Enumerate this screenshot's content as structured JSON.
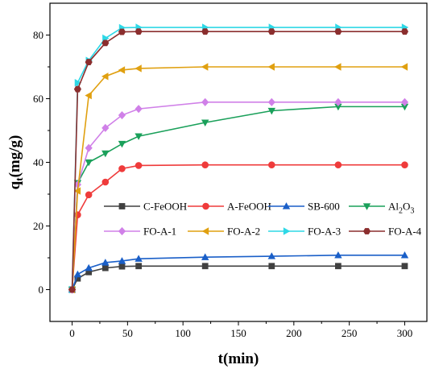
{
  "chart_data": {
    "type": "line",
    "xlabel": "t(min)",
    "ylabel": "q",
    "ylabel_sub": "t",
    "ylabel_unit": "(mg/g)",
    "xlim": [
      -20,
      320
    ],
    "ylim": [
      -10,
      90
    ],
    "xticks": [
      0,
      50,
      100,
      150,
      200,
      250,
      300
    ],
    "yticks": [
      0,
      20,
      40,
      60,
      80
    ],
    "grid": false,
    "legend_placement": "center",
    "x": [
      0,
      5,
      15,
      30,
      45,
      60,
      120,
      180,
      240,
      300
    ],
    "series": [
      {
        "name": "C-FeOOH",
        "color": "#404040",
        "marker": "square",
        "values": [
          0,
          3.5,
          5.5,
          6.8,
          7.3,
          7.4,
          7.4,
          7.4,
          7.4,
          7.4
        ]
      },
      {
        "name": "A-FeOOH",
        "color": "#ef3b3b",
        "marker": "circle",
        "values": [
          0,
          23.5,
          29.8,
          33.8,
          38.0,
          39.0,
          39.2,
          39.2,
          39.2,
          39.2
        ]
      },
      {
        "name": "SB-600",
        "color": "#1a5fc8",
        "marker": "triangle-up",
        "values": [
          0,
          4.8,
          6.8,
          8.5,
          9.0,
          9.7,
          10.2,
          10.5,
          10.8,
          10.8
        ]
      },
      {
        "name": "Al2O3",
        "name_base": "Al",
        "name_sub1": "2",
        "name_mid": "O",
        "name_sub2": "3",
        "color": "#1aa05a",
        "marker": "triangle-down",
        "values": [
          0,
          33.5,
          40.0,
          42.8,
          45.8,
          48.2,
          52.5,
          56.2,
          57.5,
          57.5
        ]
      },
      {
        "name": "FO-A-1",
        "color": "#d080e8",
        "marker": "diamond",
        "values": [
          0,
          33.0,
          44.5,
          50.8,
          54.8,
          56.8,
          58.9,
          58.9,
          58.9,
          58.9
        ]
      },
      {
        "name": "FO-A-2",
        "color": "#e0a010",
        "marker": "triangle-left",
        "values": [
          0,
          31.0,
          61.0,
          67.0,
          69.0,
          69.5,
          70.0,
          70.0,
          70.0,
          70.0
        ]
      },
      {
        "name": "FO-A-3",
        "color": "#2ed8e6",
        "marker": "triangle-right",
        "values": [
          0,
          65.0,
          72.0,
          79.0,
          82.3,
          82.4,
          82.4,
          82.4,
          82.4,
          82.4
        ]
      },
      {
        "name": "FO-A-4",
        "color": "#8b2e2e",
        "marker": "hexagon",
        "values": [
          0,
          63.0,
          71.5,
          77.5,
          81.0,
          81.1,
          81.1,
          81.1,
          81.1,
          81.1
        ]
      }
    ]
  }
}
